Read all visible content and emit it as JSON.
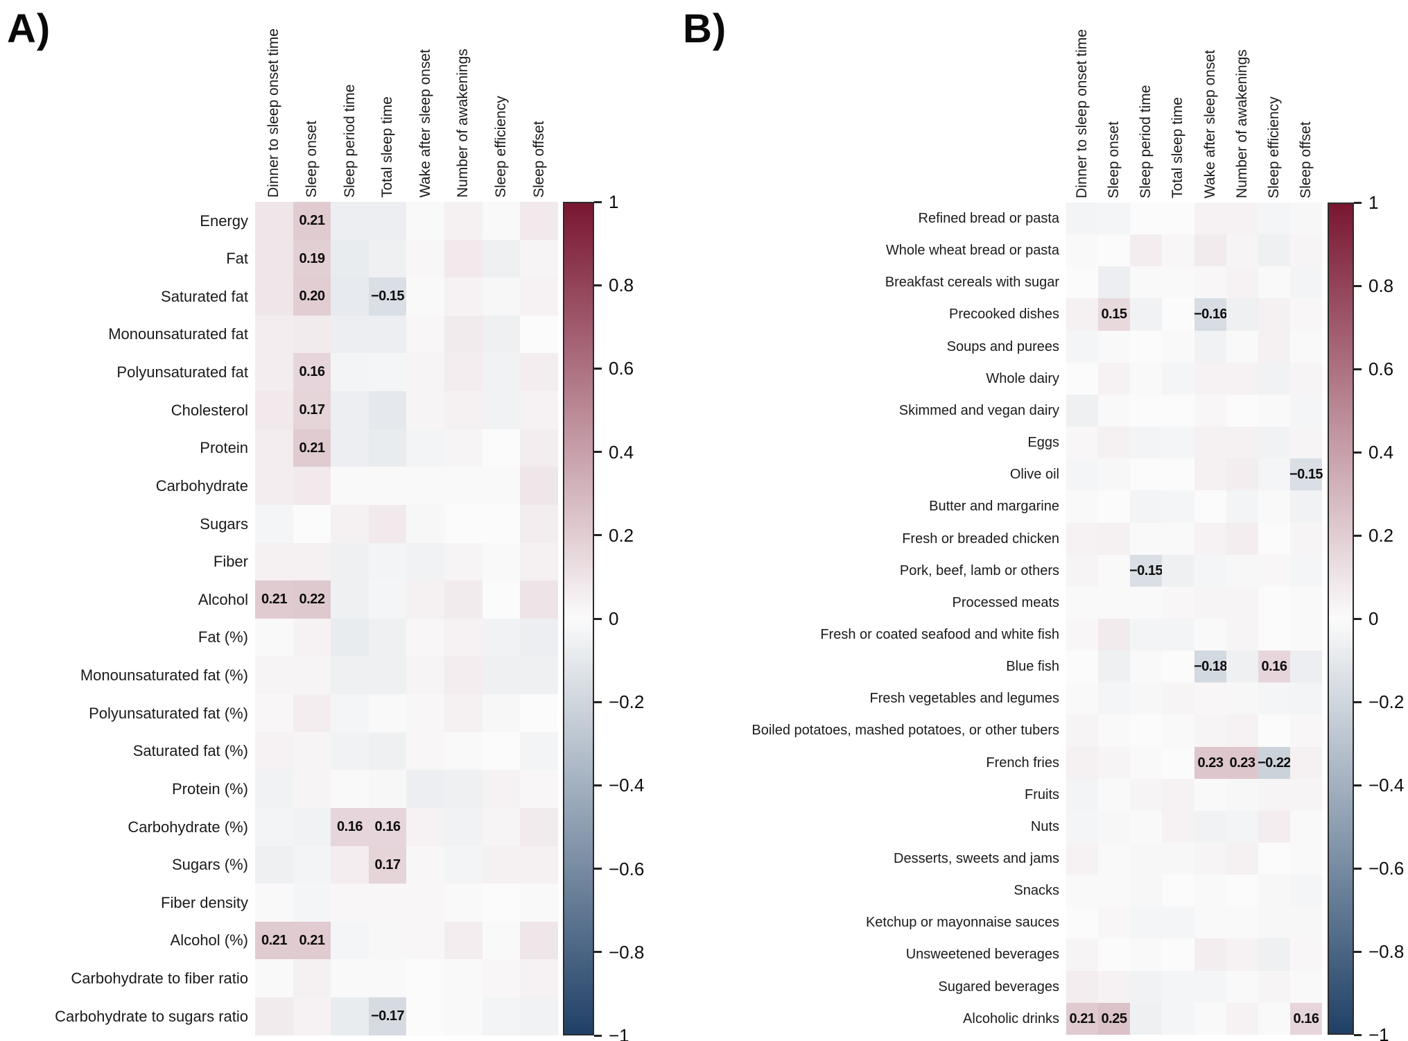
{
  "colorbar": {
    "ticks": [
      "1",
      "0.8",
      "0.6",
      "0.4",
      "0.2",
      "0",
      "−0.2",
      "−0.4",
      "−0.6",
      "−0.8",
      "−1"
    ],
    "min": -1,
    "max": 1,
    "max_color": "#791630",
    "mid_color": "#fbfbfb",
    "min_color": "#1f4066"
  },
  "chart_data": [
    {
      "type": "heatmap",
      "panel_label": "A)",
      "legend_position": "right",
      "value_range": [
        -1,
        1
      ],
      "columns": [
        "Dinner to sleep onset time",
        "Sleep onset",
        "Sleep period time",
        "Total sleep time",
        "Wake after sleep onset",
        "Number of awakenings",
        "Sleep efficiency",
        "Sleep offset"
      ],
      "rows": [
        "Energy",
        "Fat",
        "Saturated fat",
        "Monounsaturated fat",
        "Polyunsaturated fat",
        "Cholesterol",
        "Protein",
        "Carbohydrate",
        "Sugars",
        "Fiber",
        "Alcohol",
        "Fat (%)",
        "Monounsaturated fat (%)",
        "Polyunsaturated fat (%)",
        "Saturated fat (%)",
        "Protein (%)",
        "Carbohydrate (%)",
        "Sugars (%)",
        "Fiber density",
        "Alcohol (%)",
        "Carbohydrate to fiber ratio",
        "Carbohydrate to sugars ratio"
      ],
      "values": [
        [
          0.09,
          0.21,
          -0.07,
          -0.07,
          0.01,
          0.05,
          -0.01,
          0.08
        ],
        [
          0.09,
          0.19,
          -0.08,
          -0.06,
          0.02,
          0.08,
          -0.06,
          0.03
        ],
        [
          0.09,
          0.2,
          -0.09,
          -0.15,
          0.01,
          0.04,
          -0.02,
          0.04
        ],
        [
          0.06,
          0.07,
          -0.07,
          -0.07,
          0.02,
          0.07,
          -0.06,
          0.0
        ],
        [
          0.06,
          0.16,
          -0.04,
          -0.03,
          0.03,
          0.06,
          -0.05,
          0.06
        ],
        [
          0.08,
          0.17,
          -0.07,
          -0.1,
          0.03,
          0.05,
          -0.05,
          0.04
        ],
        [
          0.06,
          0.21,
          -0.07,
          -0.08,
          -0.04,
          0.03,
          0.0,
          0.06
        ],
        [
          0.06,
          0.08,
          0.01,
          0.01,
          0.01,
          0.01,
          0.01,
          0.09
        ],
        [
          -0.03,
          0.0,
          0.05,
          0.08,
          -0.02,
          0.0,
          0.0,
          0.06
        ],
        [
          0.05,
          0.05,
          -0.06,
          -0.04,
          -0.05,
          0.03,
          0.01,
          0.05
        ],
        [
          0.21,
          0.22,
          -0.06,
          -0.03,
          0.05,
          0.07,
          0.0,
          0.1
        ],
        [
          0.01,
          0.04,
          -0.08,
          -0.06,
          0.02,
          0.04,
          -0.05,
          -0.07
        ],
        [
          0.03,
          0.03,
          -0.06,
          -0.06,
          0.03,
          0.06,
          -0.06,
          -0.06
        ],
        [
          0.02,
          0.06,
          -0.03,
          -0.01,
          0.02,
          0.05,
          -0.02,
          0.0
        ],
        [
          0.04,
          0.03,
          -0.05,
          -0.06,
          0.02,
          0.01,
          0.0,
          -0.04
        ],
        [
          -0.05,
          0.03,
          0.01,
          -0.02,
          -0.07,
          -0.06,
          0.04,
          0.02
        ],
        [
          -0.04,
          -0.05,
          0.16,
          0.16,
          0.04,
          -0.05,
          0.03,
          0.07
        ],
        [
          -0.06,
          -0.04,
          0.06,
          0.17,
          0.02,
          -0.04,
          0.05,
          0.05
        ],
        [
          0.01,
          -0.03,
          0.02,
          0.02,
          0.02,
          0.01,
          0.0,
          0.01
        ],
        [
          0.21,
          0.21,
          -0.03,
          -0.02,
          0.02,
          0.06,
          -0.01,
          0.09
        ],
        [
          0.01,
          0.05,
          -0.01,
          -0.01,
          0.0,
          0.01,
          0.02,
          0.04
        ],
        [
          0.07,
          0.04,
          -0.08,
          -0.17,
          0.0,
          0.01,
          -0.04,
          -0.05
        ]
      ],
      "annotations": [
        {
          "row": 0,
          "col": 1,
          "text": "0.21"
        },
        {
          "row": 1,
          "col": 1,
          "text": "0.19"
        },
        {
          "row": 2,
          "col": 1,
          "text": "0.20"
        },
        {
          "row": 2,
          "col": 3,
          "text": "−0.15"
        },
        {
          "row": 4,
          "col": 1,
          "text": "0.16"
        },
        {
          "row": 5,
          "col": 1,
          "text": "0.17"
        },
        {
          "row": 6,
          "col": 1,
          "text": "0.21"
        },
        {
          "row": 10,
          "col": 0,
          "text": "0.21"
        },
        {
          "row": 10,
          "col": 1,
          "text": "0.22"
        },
        {
          "row": 16,
          "col": 2,
          "text": "0.16"
        },
        {
          "row": 16,
          "col": 3,
          "text": "0.16"
        },
        {
          "row": 17,
          "col": 3,
          "text": "0.17"
        },
        {
          "row": 19,
          "col": 0,
          "text": "0.21"
        },
        {
          "row": 19,
          "col": 1,
          "text": "0.21"
        },
        {
          "row": 21,
          "col": 3,
          "text": "−0.17"
        }
      ]
    },
    {
      "type": "heatmap",
      "panel_label": "B)",
      "legend_position": "right",
      "value_range": [
        -1,
        1
      ],
      "columns": [
        "Dinner to sleep onset time",
        "Sleep onset",
        "Sleep period time",
        "Total sleep time",
        "Wake after sleep onset",
        "Number of awakenings",
        "Sleep efficiency",
        "Sleep offset"
      ],
      "rows": [
        "Refined bread or pasta",
        "Whole wheat bread or pasta",
        "Breakfast cereals with sugar",
        "Precooked dishes",
        "Soups and purees",
        "Whole dairy",
        "Skimmed and vegan dairy",
        "Eggs",
        "Olive oil",
        "Butter and margarine",
        "Fresh or breaded chicken",
        "Pork, beef, lamb or others",
        "Processed meats",
        "Fresh or coated seafood and white fish",
        "Blue fish",
        "Fresh vegetables and legumes",
        "Boiled potatoes, mashed potatoes, or other tubers",
        "French fries",
        "Fruits",
        "Nuts",
        "Desserts, sweets and jams",
        "Snacks",
        "Ketchup or mayonnaise sauces",
        "Unsweetened beverages",
        "Sugared beverages",
        "Alcoholic drinks"
      ],
      "values": [
        [
          -0.04,
          -0.03,
          0.0,
          0.0,
          0.04,
          0.04,
          -0.03,
          -0.02
        ],
        [
          0.01,
          0.0,
          0.06,
          0.02,
          0.07,
          0.03,
          -0.06,
          0.03
        ],
        [
          0.0,
          -0.07,
          0.01,
          0.01,
          0.02,
          0.04,
          -0.01,
          -0.04
        ],
        [
          0.05,
          0.15,
          -0.05,
          0.0,
          -0.16,
          -0.06,
          0.05,
          0.02
        ],
        [
          -0.03,
          0.01,
          0.0,
          0.01,
          -0.05,
          -0.01,
          0.05,
          0.01
        ],
        [
          0.0,
          0.04,
          0.01,
          -0.03,
          0.04,
          0.04,
          -0.05,
          0.03
        ],
        [
          -0.06,
          0.01,
          0.0,
          0.0,
          0.02,
          0.0,
          0.01,
          -0.03
        ],
        [
          0.02,
          0.05,
          -0.04,
          -0.03,
          0.05,
          0.05,
          -0.05,
          0.03
        ],
        [
          -0.03,
          -0.02,
          0.0,
          0.0,
          0.05,
          0.06,
          -0.03,
          -0.15
        ],
        [
          0.01,
          0.0,
          -0.04,
          -0.03,
          0.0,
          -0.04,
          0.01,
          -0.05
        ],
        [
          0.04,
          0.05,
          0.01,
          0.01,
          0.04,
          0.06,
          0.0,
          0.03
        ],
        [
          0.03,
          0.01,
          -0.15,
          -0.06,
          -0.03,
          -0.02,
          0.02,
          -0.03
        ],
        [
          0.01,
          0.01,
          0.01,
          0.02,
          0.03,
          0.03,
          0.0,
          0.01
        ],
        [
          0.02,
          0.07,
          -0.04,
          -0.04,
          0.01,
          0.03,
          0.0,
          0.01
        ],
        [
          0.0,
          -0.06,
          0.01,
          0.0,
          -0.18,
          -0.06,
          0.16,
          -0.07
        ],
        [
          -0.01,
          -0.03,
          -0.02,
          0.03,
          0.02,
          -0.02,
          -0.03,
          -0.04
        ],
        [
          0.03,
          0.01,
          0.0,
          0.01,
          0.03,
          0.04,
          0.0,
          0.02
        ],
        [
          0.05,
          0.03,
          0.01,
          0.0,
          0.23,
          0.23,
          -0.22,
          0.05
        ],
        [
          -0.04,
          0.01,
          0.03,
          0.04,
          0.01,
          -0.02,
          0.03,
          0.03
        ],
        [
          -0.03,
          -0.02,
          0.01,
          0.04,
          -0.05,
          -0.04,
          0.06,
          0.01
        ],
        [
          0.04,
          0.01,
          -0.02,
          -0.02,
          0.03,
          0.05,
          0.0,
          0.01
        ],
        [
          0.01,
          0.01,
          -0.02,
          0.0,
          0.01,
          0.0,
          -0.02,
          -0.03
        ],
        [
          0.0,
          0.02,
          -0.03,
          -0.03,
          0.01,
          0.01,
          -0.02,
          -0.02
        ],
        [
          0.03,
          0.0,
          0.01,
          0.0,
          0.06,
          0.04,
          -0.06,
          0.02
        ],
        [
          0.06,
          0.04,
          -0.05,
          -0.03,
          -0.03,
          0.01,
          0.03,
          0.01
        ],
        [
          0.21,
          0.25,
          -0.06,
          -0.03,
          0.01,
          0.04,
          0.01,
          0.16
        ]
      ],
      "annotations": [
        {
          "row": 3,
          "col": 1,
          "text": "0.15"
        },
        {
          "row": 3,
          "col": 4,
          "text": "−0.16"
        },
        {
          "row": 8,
          "col": 7,
          "text": "−0.15"
        },
        {
          "row": 11,
          "col": 2,
          "text": "−0.15"
        },
        {
          "row": 14,
          "col": 4,
          "text": "−0.18"
        },
        {
          "row": 14,
          "col": 6,
          "text": "0.16"
        },
        {
          "row": 17,
          "col": 4,
          "text": "0.23"
        },
        {
          "row": 17,
          "col": 5,
          "text": "0.23"
        },
        {
          "row": 17,
          "col": 6,
          "text": "−0.22"
        },
        {
          "row": 25,
          "col": 0,
          "text": "0.21"
        },
        {
          "row": 25,
          "col": 1,
          "text": "0.25"
        },
        {
          "row": 25,
          "col": 7,
          "text": "0.16"
        }
      ]
    }
  ]
}
